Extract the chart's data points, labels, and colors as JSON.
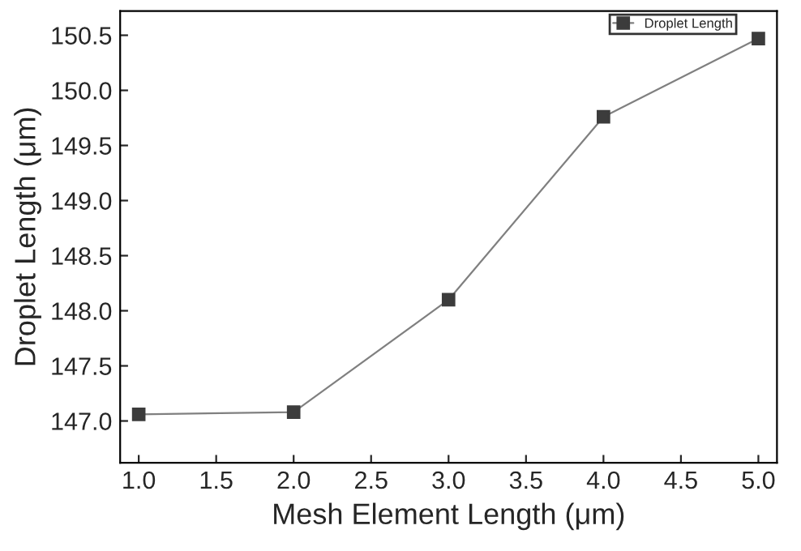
{
  "chart_data": {
    "type": "line",
    "xlabel": "Mesh Element Length (μm)",
    "ylabel": "Droplet Length (μm)",
    "x": [
      1.0,
      2.0,
      3.0,
      4.0,
      5.0
    ],
    "series": [
      {
        "name": "Droplet Length",
        "color": "#3c3c3c",
        "values": [
          147.06,
          147.08,
          148.1,
          149.76,
          150.47
        ]
      }
    ],
    "xlim": [
      0.88,
      5.12
    ],
    "xticks": [
      {
        "value": 1.0,
        "label": "1.0"
      },
      {
        "value": 1.5,
        "label": "1.5"
      },
      {
        "value": 2.0,
        "label": "2.0"
      },
      {
        "value": 2.5,
        "label": "2.5"
      },
      {
        "value": 3.0,
        "label": "3.0"
      },
      {
        "value": 3.5,
        "label": "3.5"
      },
      {
        "value": 4.0,
        "label": "4.0"
      },
      {
        "value": 4.5,
        "label": "4.5"
      },
      {
        "value": 5.0,
        "label": "5.0"
      }
    ],
    "ylim": [
      146.62,
      150.72
    ],
    "yticks": [
      {
        "value": 147.0,
        "label": "147.0"
      },
      {
        "value": 147.5,
        "label": "147.5"
      },
      {
        "value": 148.0,
        "label": "148.0"
      },
      {
        "value": 148.5,
        "label": "148.5"
      },
      {
        "value": 149.0,
        "label": "149.0"
      },
      {
        "value": 149.5,
        "label": "149.5"
      },
      {
        "value": 150.0,
        "label": "150.0"
      },
      {
        "value": 150.5,
        "label": "150.5"
      }
    ],
    "legend": "top right",
    "marker": "square",
    "line_style": "solid",
    "grid": false
  }
}
